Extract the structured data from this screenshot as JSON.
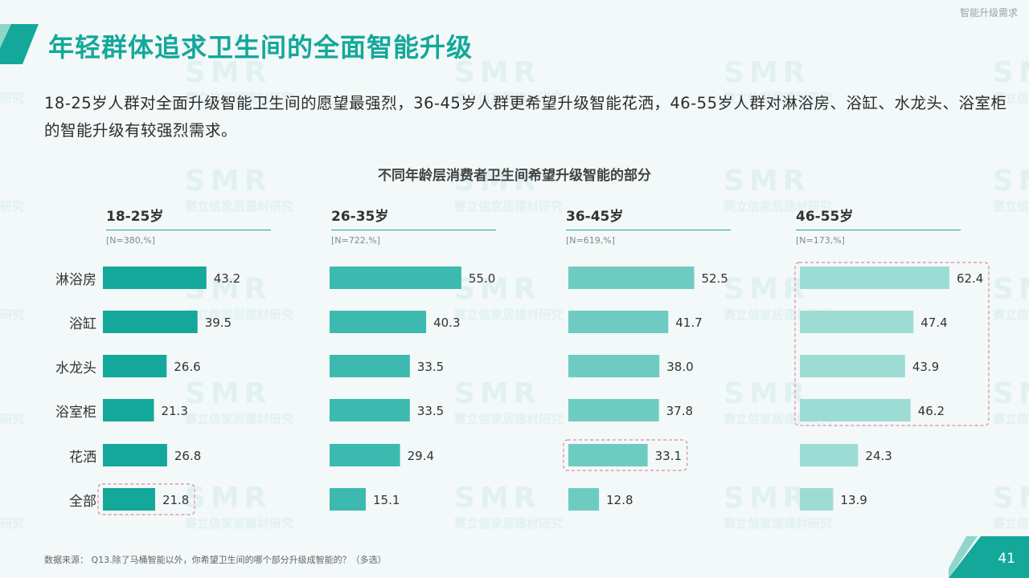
{
  "header": {
    "corner_tag": "智能升级需求"
  },
  "title": "年轻群体追求卫生间的全面智能升级",
  "intro": "18-25岁人群对全面升级智能卫生间的愿望最强烈，36-45岁人群更希望升级智能花洒，46-55岁人群对淋浴房、浴缸、水龙头、浴室柜的智能升级有较强烈需求。",
  "chart_data": {
    "type": "bar",
    "orientation": "horizontal",
    "title": "不同年龄层消费者卫生间希望升级智能的部分",
    "categories": [
      "淋浴房",
      "浴缸",
      "水龙头",
      "浴室柜",
      "花洒",
      "全部"
    ],
    "panels": [
      {
        "label": "18-25岁",
        "n_label": "[N=380,%]",
        "color": "#13a89a",
        "values": [
          43.2,
          39.5,
          26.6,
          21.3,
          26.8,
          21.8
        ],
        "highlight": "全部"
      },
      {
        "label": "26-35岁",
        "n_label": "[N=722,%]",
        "color": "#3dbab0",
        "values": [
          55.0,
          40.3,
          33.5,
          33.5,
          29.4,
          15.1
        ],
        "highlight": null
      },
      {
        "label": "36-45岁",
        "n_label": "[N=619,%]",
        "color": "#6ecbc2",
        "values": [
          52.5,
          41.7,
          38.0,
          37.8,
          33.1,
          12.8
        ],
        "highlight": "花洒"
      },
      {
        "label": "46-55岁",
        "n_label": "[N=173,%]",
        "color": "#9ddcd5",
        "values": [
          62.4,
          47.4,
          43.9,
          46.2,
          24.3,
          13.9
        ],
        "highlight": "淋浴房~浴室柜"
      }
    ],
    "highlight_color": "#d98aa0"
  },
  "footer": {
    "source": "数据来源： Q13.除了马桶智能以外，你希望卫生间的哪个部分升级成智能的？（多选）",
    "page": "41"
  },
  "colors": {
    "accent": "#13a89a",
    "deco_dark": "#13a89a",
    "deco_light": "#8fd5cc"
  },
  "watermark": {
    "logo": "SMR",
    "text": "赛立信家居建材研究"
  }
}
